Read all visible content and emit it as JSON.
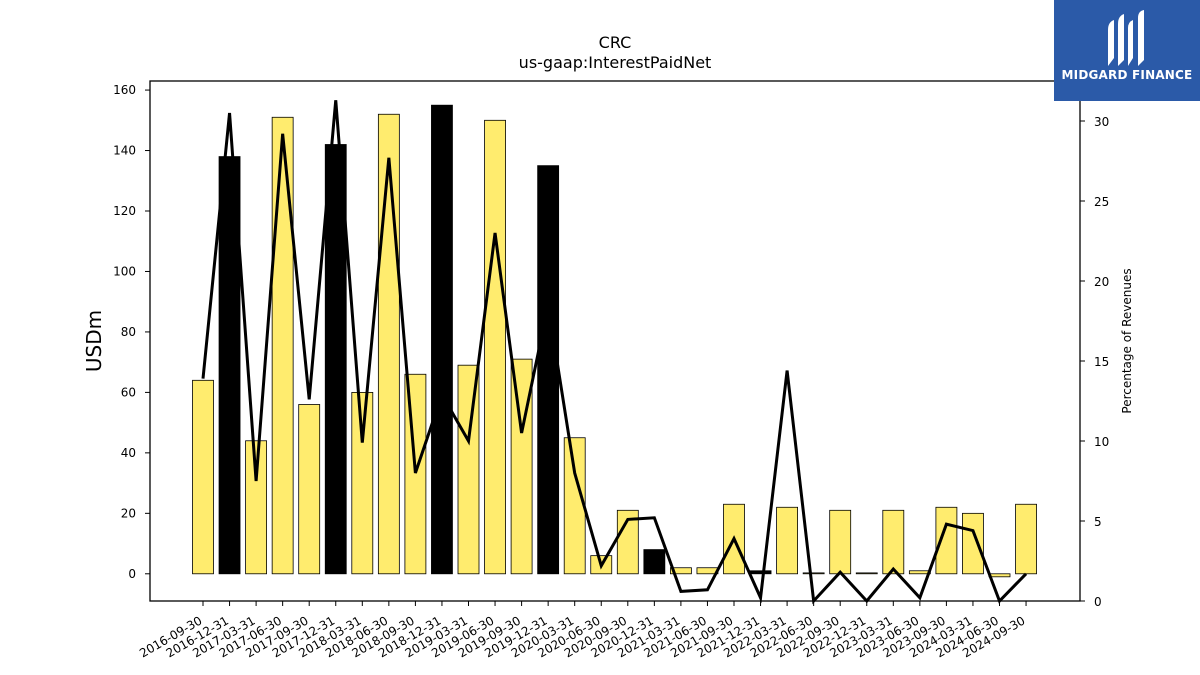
{
  "brand": {
    "name": "MIDGARD FINANCE",
    "bg_color": "#2b5aa8"
  },
  "chart_data": {
    "type": "bar+line",
    "title": "CRC",
    "subtitle": "us-gaap:InterestPaidNet",
    "ylabel_left": "USDm",
    "ylabel_right": "Percentage of Revenues",
    "ylim_left": [
      -9,
      163
    ],
    "ylim_right": [
      0,
      32.5
    ],
    "yticks_left": [
      0,
      20,
      40,
      60,
      80,
      100,
      120,
      140,
      160
    ],
    "yticks_right": [
      0,
      5,
      10,
      15,
      20,
      25,
      30
    ],
    "categories": [
      "2016-09-30",
      "2016-12-31",
      "2017-03-31",
      "2017-06-30",
      "2017-09-30",
      "2017-12-31",
      "2018-03-31",
      "2018-06-30",
      "2018-09-30",
      "2018-12-31",
      "2019-03-31",
      "2019-06-30",
      "2019-09-30",
      "2019-12-31",
      "2020-03-31",
      "2020-06-30",
      "2020-09-30",
      "2020-12-31",
      "2021-03-31",
      "2021-06-30",
      "2021-09-30",
      "2021-12-31",
      "2022-03-31",
      "2022-06-30",
      "2022-09-30",
      "2022-12-31",
      "2023-03-31",
      "2023-06-30",
      "2023-09-30",
      "2024-03-31",
      "2024-06-30",
      "2024-09-30"
    ],
    "bar_positions": [
      0,
      1,
      2,
      3,
      4,
      5,
      6,
      7,
      8,
      9,
      10,
      11,
      12,
      13,
      14,
      15,
      16,
      17,
      18,
      19,
      20,
      21,
      22,
      23,
      24,
      25,
      26,
      27,
      28,
      29,
      31
    ],
    "bar_values": [
      64,
      138,
      44,
      151,
      56,
      142,
      60,
      152,
      66,
      155,
      69,
      150,
      71,
      135,
      45,
      6,
      21,
      8,
      2,
      2,
      23,
      1,
      22,
      0.3,
      21,
      0.3,
      21,
      1,
      22,
      20,
      23
    ],
    "bar_colors": [
      "#ffec6e",
      "#000000",
      "#ffec6e",
      "#ffec6e",
      "#ffec6e",
      "#000000",
      "#ffec6e",
      "#ffec6e",
      "#ffec6e",
      "#000000",
      "#ffec6e",
      "#ffec6e",
      "#ffec6e",
      "#000000",
      "#ffec6e",
      "#ffec6e",
      "#ffec6e",
      "#000000",
      "#ffec6e",
      "#ffec6e",
      "#ffec6e",
      "#000000",
      "#ffec6e",
      "#ffec6e",
      "#ffec6e",
      "#ffec6e",
      "#ffec6e",
      "#ffec6e",
      "#ffec6e",
      "#ffec6e",
      "#ffec6e"
    ],
    "extra_bar": {
      "position": 30,
      "value": -1,
      "color": "#ffec6e"
    },
    "line_values": [
      13.9,
      30.5,
      7.5,
      29.2,
      12.6,
      31.3,
      9.9,
      27.7,
      8.0,
      12.9,
      10.0,
      23.0,
      10.5,
      18.5,
      8.0,
      2.2,
      5.1,
      5.2,
      0.6,
      0.7,
      3.9,
      0.2,
      14.4,
      0.0,
      1.8,
      0.0,
      2.0,
      0.2,
      4.8,
      4.4,
      0.0,
      1.7
    ],
    "line_color": "#000000",
    "grid": false
  }
}
